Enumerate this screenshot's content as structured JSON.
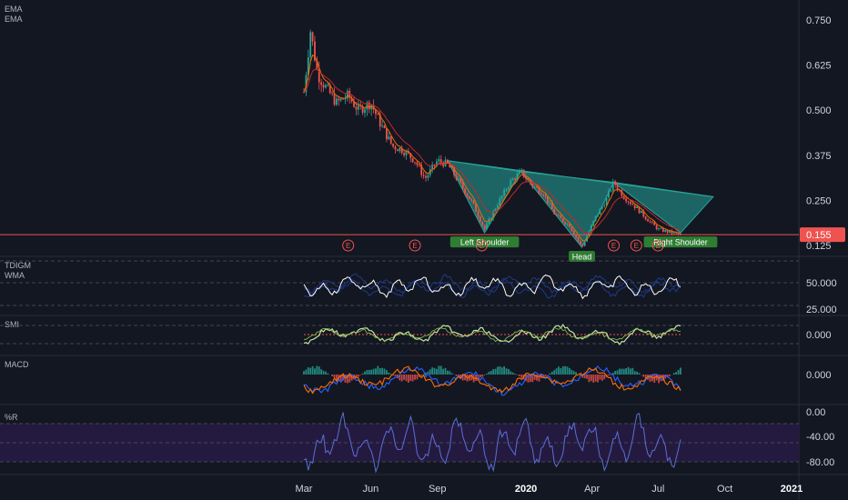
{
  "chart_data": [
    {
      "type": "candlestick",
      "panel": "price",
      "indicators": [
        "EMA",
        "EMA"
      ],
      "y_ticks": [
        "0.750",
        "0.625",
        "0.500",
        "0.375",
        "0.250",
        "0.125"
      ],
      "ylim": [
        0.11,
        0.78
      ],
      "last_price": "0.155",
      "last_price_color": "#ef5350",
      "approx_path": [
        [
          "2019-03-01",
          0.55
        ],
        [
          "2019-03-10",
          0.72
        ],
        [
          "2019-03-20",
          0.6
        ],
        [
          "2019-04-01",
          0.56
        ],
        [
          "2019-04-15",
          0.52
        ],
        [
          "2019-05-01",
          0.54
        ],
        [
          "2019-05-15",
          0.5
        ],
        [
          "2019-06-01",
          0.52
        ],
        [
          "2019-06-15",
          0.46
        ],
        [
          "2019-07-01",
          0.4
        ],
        [
          "2019-07-15",
          0.39
        ],
        [
          "2019-08-01",
          0.36
        ],
        [
          "2019-08-15",
          0.31
        ],
        [
          "2019-09-01",
          0.36
        ],
        [
          "2019-09-15",
          0.35
        ],
        [
          "2019-10-01",
          0.3
        ],
        [
          "2019-10-20",
          0.24
        ],
        [
          "2019-11-05",
          0.17
        ],
        [
          "2019-11-20",
          0.23
        ],
        [
          "2019-12-10",
          0.3
        ],
        [
          "2019-12-25",
          0.33
        ],
        [
          "2020-01-10",
          0.29
        ],
        [
          "2020-01-25",
          0.27
        ],
        [
          "2020-02-10",
          0.21
        ],
        [
          "2020-03-01",
          0.18
        ],
        [
          "2020-03-18",
          0.12
        ],
        [
          "2020-04-05",
          0.2
        ],
        [
          "2020-04-20",
          0.25
        ],
        [
          "2020-05-01",
          0.3
        ],
        [
          "2020-05-15",
          0.26
        ],
        [
          "2020-06-01",
          0.23
        ],
        [
          "2020-06-15",
          0.2
        ],
        [
          "2020-07-01",
          0.17
        ],
        [
          "2020-07-20",
          0.16
        ],
        [
          "2020-08-01",
          0.155
        ]
      ],
      "pattern": {
        "color": "#26a69a",
        "labels": [
          "Left Shoulder",
          "Head",
          "Right Shoulder"
        ],
        "points": [
          [
            "2019-09-15",
            0.36
          ],
          [
            "2019-11-05",
            0.16
          ],
          [
            "2019-12-25",
            0.33
          ],
          [
            "2020-03-18",
            0.12
          ],
          [
            "2020-05-01",
            0.3
          ],
          [
            "2020-08-01",
            0.16
          ],
          [
            "2020-09-15",
            0.26
          ]
        ]
      },
      "earnings_markers": {
        "label": "E",
        "dates": [
          "2019-05-01",
          "2019-08-01",
          "2019-11-01",
          "2020-05-01",
          "2020-06-01",
          "2020-07-01"
        ]
      }
    },
    {
      "type": "line",
      "panel": "oscillator",
      "indicators": [
        "TDIGM",
        "WMA"
      ],
      "y_ticks": [
        "50.000",
        "25.000"
      ],
      "ylim": [
        18,
        85
      ],
      "color": "#ffffff"
    },
    {
      "type": "line",
      "panel": "oscillator",
      "indicators": [
        "SMI"
      ],
      "y_ticks": [
        "0.000"
      ],
      "color": "#c5e1a5"
    },
    {
      "type": "line",
      "panel": "oscillator",
      "indicators": [
        "MACD"
      ],
      "y_ticks": [
        "0.000"
      ],
      "colors": {
        "macd": "#2962ff",
        "signal": "#ff6d00",
        "hist_pos": "#26a69a",
        "hist_neg": "#ef5350"
      }
    },
    {
      "type": "line",
      "panel": "oscillator",
      "indicators": [
        "%R"
      ],
      "y_ticks": [
        "0.00",
        "-40.00",
        "-80.00"
      ],
      "ylim": [
        -100,
        0
      ],
      "color": "#5b6fd6",
      "band_color": "#2a1e4a"
    }
  ],
  "time_axis": {
    "ticks": [
      {
        "label": "Mar",
        "date": "2019-03-01"
      },
      {
        "label": "Jun",
        "date": "2019-06-01"
      },
      {
        "label": "Sep",
        "date": "2019-09-01"
      },
      {
        "label": "2020",
        "date": "2020-01-01",
        "bold": true
      },
      {
        "label": "Apr",
        "date": "2020-04-01"
      },
      {
        "label": "Jul",
        "date": "2020-07-01"
      },
      {
        "label": "Oct",
        "date": "2020-10-01"
      },
      {
        "label": "2021",
        "date": "2021-01-01",
        "bold": true
      }
    ]
  }
}
